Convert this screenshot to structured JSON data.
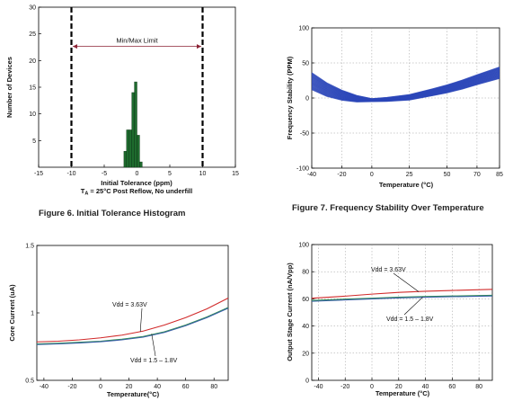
{
  "chart_data": [
    {
      "id": "fig6",
      "type": "bar",
      "caption": "Figure 6. Initial Tolerance Histogram",
      "xlabel": "Initial Tolerance (ppm)",
      "sub_label": "T",
      "sub_label_sub": "A",
      "sub_label_rest": " = 25°C Post Reflow, No underfill",
      "ylabel": "Number of Devices",
      "xlim": [
        -15,
        15
      ],
      "ylim": [
        0,
        30
      ],
      "xticks": [
        -15,
        -10,
        -5,
        0,
        5,
        10,
        15
      ],
      "yticks": [
        5,
        10,
        15,
        20,
        25,
        30
      ],
      "grid": false,
      "limit_lines": [
        -10,
        10
      ],
      "limit_label": "Min/Max Limit",
      "bins": [
        {
          "x0": -2.0,
          "x1": -1.6,
          "value": 3
        },
        {
          "x0": -1.6,
          "x1": -1.2,
          "value": 7
        },
        {
          "x0": -1.2,
          "x1": -0.8,
          "value": 7
        },
        {
          "x0": -0.8,
          "x1": -0.4,
          "value": 14
        },
        {
          "x0": -0.4,
          "x1": 0.0,
          "value": 16
        },
        {
          "x0": 0.0,
          "x1": 0.4,
          "value": 6
        },
        {
          "x0": 0.4,
          "x1": 0.8,
          "value": 1
        }
      ],
      "colors": {
        "bar": "#1e6b2e",
        "bar_edge": "#0a2f12"
      }
    },
    {
      "id": "fig7",
      "type": "line",
      "caption": "Figure 7. Frequency Stability Over Temperature",
      "xlabel": "Temperature (°C)",
      "ylabel": "Frequency Stability (PPM)",
      "xlim": [
        -40,
        85
      ],
      "ylim": [
        -100,
        100
      ],
      "xticks": [
        -40,
        -20,
        0,
        25,
        50,
        70,
        85
      ],
      "yticks": [
        -100,
        -50,
        0,
        50,
        100
      ],
      "grid": true,
      "band_center": [
        {
          "x": -40,
          "y": 24
        },
        {
          "x": -30,
          "y": 12
        },
        {
          "x": -20,
          "y": 4
        },
        {
          "x": -10,
          "y": -1
        },
        {
          "x": 0,
          "y": -3
        },
        {
          "x": 10,
          "y": -2
        },
        {
          "x": 25,
          "y": 1
        },
        {
          "x": 40,
          "y": 8
        },
        {
          "x": 50,
          "y": 13
        },
        {
          "x": 60,
          "y": 19
        },
        {
          "x": 70,
          "y": 26
        },
        {
          "x": 85,
          "y": 36
        }
      ],
      "band_spread_low_temp": 12,
      "band_spread_mid": 2,
      "band_spread_high_temp": 8,
      "colors": {
        "band": "#2b47b8"
      }
    },
    {
      "id": "core",
      "type": "line",
      "xlabel": "Temperature(°C)",
      "ylabel": "Core Current (uA)",
      "xlim": [
        -45,
        90
      ],
      "ylim": [
        0.5,
        1.5
      ],
      "xticks": [
        -40,
        -20,
        0,
        20,
        40,
        60,
        80
      ],
      "yticks": [
        0.5,
        1,
        1.5
      ],
      "ytick_labels": [
        "0.5",
        "1",
        "1.5"
      ],
      "grid": false,
      "series": [
        {
          "name": "Vdd = 3.63V",
          "color": "#d12a2a",
          "x": [
            -45,
            -30,
            -15,
            0,
            15,
            30,
            45,
            60,
            75,
            90
          ],
          "y": [
            0.785,
            0.79,
            0.8,
            0.815,
            0.835,
            0.865,
            0.91,
            0.965,
            1.03,
            1.11
          ]
        },
        {
          "name": "Vdd = 1.5 – 1.8V",
          "color": "#2f8f4f",
          "x": [
            -45,
            -30,
            -15,
            0,
            15,
            30,
            45,
            60,
            75,
            90
          ],
          "y": [
            0.77,
            0.775,
            0.782,
            0.79,
            0.805,
            0.825,
            0.86,
            0.91,
            0.97,
            1.04
          ]
        },
        {
          "name": "Vdd = 1.5 – 1.8V",
          "color": "#3a5fa8",
          "x": [
            -45,
            -30,
            -15,
            0,
            15,
            30,
            45,
            60,
            75,
            90
          ],
          "y": [
            0.765,
            0.77,
            0.777,
            0.786,
            0.8,
            0.82,
            0.855,
            0.905,
            0.965,
            1.035
          ]
        }
      ],
      "annotations": [
        {
          "text": "Vdd = 3.63V"
        },
        {
          "text": "Vdd = 1.5 – 1.8V"
        }
      ]
    },
    {
      "id": "output",
      "type": "line",
      "xlabel": "Temperature (°C)",
      "ylabel": "Output Stage Current (nA/Vpp)",
      "xlim": [
        -45,
        90
      ],
      "ylim": [
        0,
        100
      ],
      "xticks": [
        -40,
        -20,
        0,
        20,
        40,
        60,
        80
      ],
      "yticks": [
        0,
        20,
        40,
        60,
        80,
        100
      ],
      "grid": true,
      "series": [
        {
          "name": "Vdd = 3.63V",
          "color": "#d12a2a",
          "x": [
            -45,
            -20,
            0,
            20,
            40,
            60,
            90
          ],
          "y": [
            60.5,
            62,
            63.5,
            64.8,
            65.6,
            66.2,
            67
          ]
        },
        {
          "name": "Vdd = 1.5 – 1.8V",
          "color": "#2f8f4f",
          "x": [
            -45,
            -20,
            0,
            20,
            40,
            60,
            90
          ],
          "y": [
            58.8,
            59.8,
            60.5,
            61.2,
            61.7,
            62.1,
            62.6
          ]
        },
        {
          "name": "Vdd = 1.5 – 1.8V",
          "color": "#3a5fa8",
          "x": [
            -45,
            -20,
            0,
            20,
            40,
            60,
            90
          ],
          "y": [
            58.2,
            59.2,
            60,
            60.7,
            61.2,
            61.6,
            62.1
          ]
        }
      ],
      "annotations": [
        {
          "text": "Vdd = 3.63V"
        },
        {
          "text": "Vdd = 1.5 – 1.8V"
        }
      ]
    }
  ]
}
